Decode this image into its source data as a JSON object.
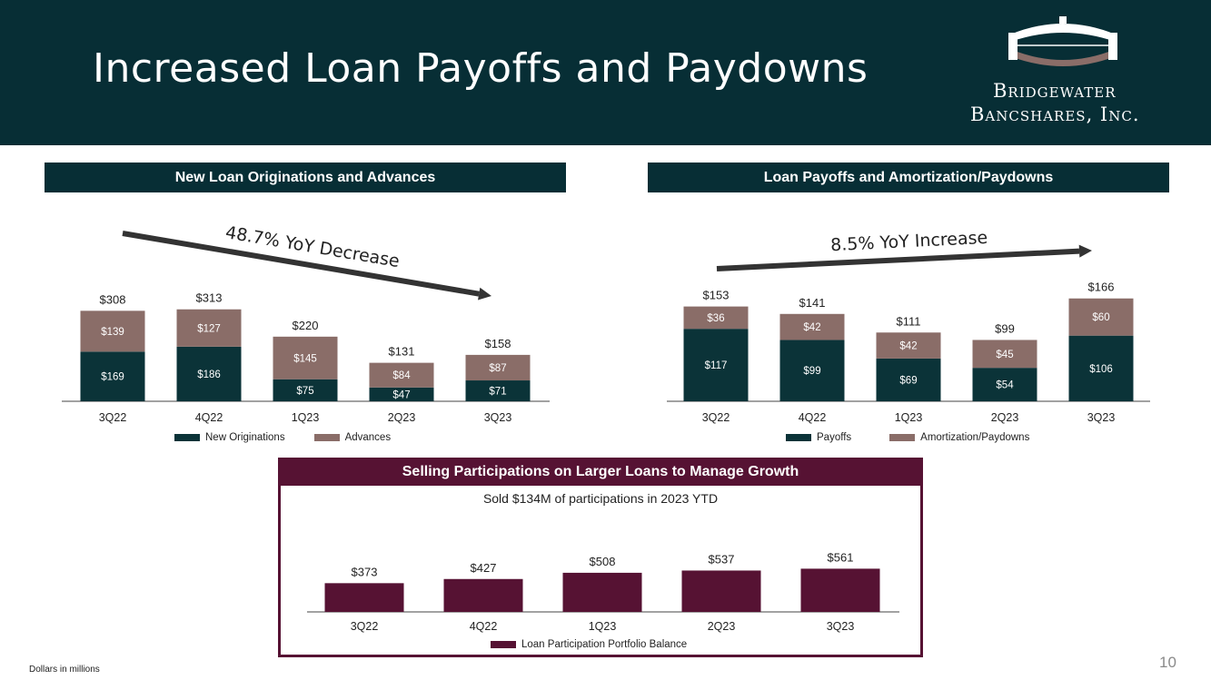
{
  "page": {
    "title": "Increased Loan Payoffs and Paydowns",
    "logo_line1": "Bridgewater",
    "logo_line2": "Bancshares, Inc.",
    "footnote": "Dollars in millions",
    "page_number": "10",
    "colors": {
      "header_bg": "#072e35",
      "dark_teal": "#0b3338",
      "taupe": "#8a6d68",
      "maroon": "#561233"
    }
  },
  "panels": {
    "left_title": "New Loan Originations and Advances",
    "right_title": "Loan Payoffs and Amortization/Paydowns",
    "bottom_title": "Selling Participations on Larger Loans to Manage Growth",
    "bottom_subtitle": "Sold $134M of participations in 2023 YTD"
  },
  "chart_data": [
    {
      "type": "bar",
      "stacked": true,
      "categories": [
        "3Q22",
        "4Q22",
        "1Q23",
        "2Q23",
        "3Q23"
      ],
      "series": [
        {
          "name": "New Originations",
          "values": [
            169,
            186,
            75,
            47,
            71
          ],
          "labels": [
            "$169",
            "$186",
            "$75",
            "$47",
            "$71"
          ],
          "color": "#0b3338"
        },
        {
          "name": "Advances",
          "values": [
            139,
            127,
            145,
            84,
            87
          ],
          "labels": [
            "$139",
            "$127",
            "$145",
            "$84",
            "$87"
          ],
          "color": "#8a6d68"
        }
      ],
      "totals": [
        "$308",
        "$313",
        "$220",
        "$131",
        "$158"
      ],
      "ylim": [
        0,
        340
      ],
      "annotation": "48.7% YoY Decrease",
      "trend": "down",
      "legend": "bottom"
    },
    {
      "type": "bar",
      "stacked": true,
      "categories": [
        "3Q22",
        "4Q22",
        "1Q23",
        "2Q23",
        "3Q23"
      ],
      "series": [
        {
          "name": "Payoffs",
          "values": [
            117,
            99,
            69,
            54,
            106
          ],
          "labels": [
            "$117",
            "$99",
            "$69",
            "$54",
            "$106"
          ],
          "color": "#0b3338"
        },
        {
          "name": "Amortization/Paydowns",
          "values": [
            36,
            42,
            42,
            45,
            60
          ],
          "labels": [
            "$36",
            "$42",
            "$42",
            "$45",
            "$60"
          ],
          "color": "#8a6d68"
        }
      ],
      "totals": [
        "$153",
        "$141",
        "$111",
        "$99",
        "$166"
      ],
      "ylim": [
        0,
        170
      ],
      "annotation": "8.5% YoY Increase",
      "trend": "up",
      "legend": "bottom"
    },
    {
      "type": "bar",
      "categories": [
        "3Q22",
        "4Q22",
        "1Q23",
        "2Q23",
        "3Q23"
      ],
      "series": [
        {
          "name": "Loan Participation Portfolio Balance",
          "values": [
            373,
            427,
            508,
            537,
            561
          ],
          "labels": [
            "$373",
            "$427",
            "$508",
            "$537",
            "$561"
          ],
          "color": "#561233"
        }
      ],
      "ylim": [
        0,
        660
      ],
      "legend": "bottom"
    }
  ]
}
